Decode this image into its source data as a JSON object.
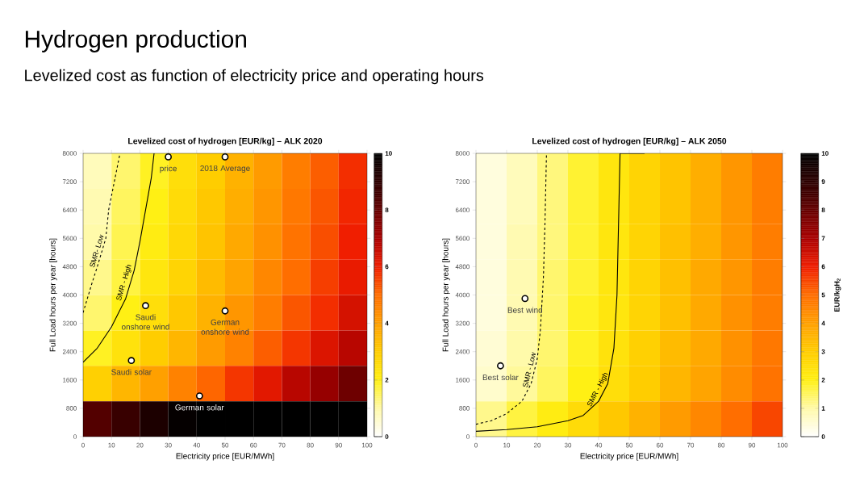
{
  "chart_data": [
    {
      "type": "other",
      "title": "Hydrogen production",
      "subtitle": "Levelized cost as function of electricity price and operating hours"
    },
    {
      "type": "heatmap",
      "title": "Levelized cost of hydrogen [EUR/kg] – ALK 2020",
      "xlabel": "Electricity price [EUR/MWh]",
      "ylabel": "Full Load hours per year [hours]",
      "x": [
        5,
        15,
        25,
        35,
        45,
        55,
        65,
        75,
        85,
        95
      ],
      "y": [
        7500,
        6500,
        5500,
        4500,
        3500,
        2500,
        1500,
        500
      ],
      "cells": [
        [
          0.8,
          1.4,
          1.9,
          2.5,
          3.0,
          3.6,
          4.1,
          4.7,
          5.2,
          5.8
        ],
        [
          0.9,
          1.5,
          2.0,
          2.6,
          3.1,
          3.7,
          4.2,
          4.8,
          5.3,
          5.9
        ],
        [
          1.0,
          1.6,
          2.1,
          2.7,
          3.2,
          3.8,
          4.3,
          4.9,
          5.4,
          6.0
        ],
        [
          1.2,
          1.7,
          2.3,
          2.8,
          3.4,
          3.9,
          4.5,
          5.0,
          5.6,
          6.1
        ],
        [
          1.4,
          2.0,
          2.5,
          3.1,
          3.6,
          4.2,
          4.7,
          5.3,
          5.8,
          6.4
        ],
        [
          1.9,
          2.4,
          3.0,
          3.5,
          4.1,
          4.6,
          5.2,
          5.7,
          6.3,
          6.8
        ],
        [
          2.9,
          3.5,
          4.0,
          4.6,
          5.1,
          5.7,
          6.2,
          6.8,
          7.3,
          7.9
        ],
        [
          8.3,
          8.8,
          9.4,
          9.9,
          10,
          10,
          10,
          10,
          10,
          10
        ]
      ],
      "clim": [
        0,
        10
      ],
      "cticks": [
        0,
        2,
        4,
        6,
        8,
        10
      ],
      "xlim": [
        0,
        100
      ],
      "ylim": [
        0,
        8000
      ],
      "xticks": [
        0,
        10,
        20,
        30,
        40,
        50,
        60,
        70,
        80,
        90,
        100
      ],
      "yticks": [
        0,
        800,
        1600,
        2400,
        3200,
        4000,
        4800,
        5600,
        6400,
        7200,
        8000
      ],
      "series": [
        {
          "type": "line",
          "name": "SMR- Low",
          "color": "#000000",
          "line_style": "dashed",
          "x": [
            0,
            3,
            5,
            8,
            9,
            11,
            13
          ],
          "values": [
            3500,
            4300,
            4800,
            5600,
            6400,
            7200,
            8000
          ]
        },
        {
          "type": "line",
          "name": "SMR - High",
          "color": "#000000",
          "line_style": "solid",
          "x": [
            0,
            5,
            10,
            15,
            18,
            20,
            22,
            24,
            25
          ],
          "values": [
            2100,
            2500,
            3100,
            3900,
            4700,
            5500,
            6400,
            7300,
            8000
          ]
        },
        {
          "type": "scatter",
          "color": "#000000",
          "marker": "circle",
          "x": [
            30,
            50,
            22,
            50,
            17,
            41
          ],
          "values": [
            7900,
            7900,
            3700,
            3550,
            2150,
            1150
          ]
        }
      ],
      "annotations": [
        {
          "text": "price",
          "x": 30,
          "y": 7900
        },
        {
          "text": "2018 Average",
          "x": 50,
          "y": 7900
        },
        {
          "text": "Saudi onshore wind",
          "x": 22,
          "y": 3700
        },
        {
          "text": "German onshore wind",
          "x": 50,
          "y": 3550
        },
        {
          "text": "Saudi solar",
          "x": 17,
          "y": 2150
        },
        {
          "text": "German solar",
          "x": 41,
          "y": 1150
        }
      ]
    },
    {
      "type": "heatmap",
      "title": "Levelized cost of hydrogen [EUR/kg] – ALK 2050",
      "xlabel": "Electricity price [EUR/MWh]",
      "ylabel": "Full Load hours per year [hours]",
      "x": [
        5,
        15,
        25,
        35,
        45,
        55,
        65,
        75,
        85,
        95
      ],
      "y": [
        7500,
        6500,
        5500,
        4500,
        3500,
        2500,
        1500,
        500
      ],
      "cells": [
        [
          0.4,
          0.8,
          1.3,
          1.8,
          2.3,
          2.8,
          3.2,
          3.7,
          4.2,
          4.7
        ],
        [
          0.4,
          0.8,
          1.3,
          1.8,
          2.3,
          2.8,
          3.2,
          3.7,
          4.2,
          4.7
        ],
        [
          0.4,
          0.9,
          1.3,
          1.8,
          2.3,
          2.8,
          3.3,
          3.7,
          4.2,
          4.7
        ],
        [
          0.4,
          0.9,
          1.4,
          1.8,
          2.3,
          2.8,
          3.3,
          3.8,
          4.2,
          4.7
        ],
        [
          0.4,
          0.9,
          1.4,
          1.9,
          2.3,
          2.8,
          3.3,
          3.8,
          4.3,
          4.7
        ],
        [
          0.5,
          1.0,
          1.4,
          1.9,
          2.4,
          2.9,
          3.4,
          3.8,
          4.3,
          4.8
        ],
        [
          0.6,
          1.1,
          1.5,
          2.0,
          2.5,
          3.0,
          3.5,
          3.9,
          4.4,
          4.9
        ],
        [
          1.2,
          1.7,
          2.1,
          2.6,
          3.1,
          3.6,
          4.1,
          4.5,
          5.0,
          5.5
        ]
      ],
      "clim": [
        0,
        10
      ],
      "cticks": [
        0,
        1,
        2,
        3,
        4,
        5,
        6,
        7,
        8,
        9,
        10
      ],
      "clabel": "EUR/kgH$_{2}$",
      "xlim": [
        0,
        100
      ],
      "ylim": [
        0,
        8000
      ],
      "xticks": [
        0,
        10,
        20,
        30,
        40,
        50,
        60,
        70,
        80,
        90,
        100
      ],
      "yticks": [
        0,
        800,
        1600,
        2400,
        3200,
        4000,
        4800,
        5600,
        6400,
        7200,
        8000
      ],
      "series": [
        {
          "type": "line",
          "name": "SMR - Low",
          "color": "#000000",
          "line_style": "dashed",
          "x": [
            0,
            5,
            10,
            15,
            18,
            20,
            21,
            22,
            22.5,
            23
          ],
          "values": [
            350,
            450,
            650,
            1000,
            1500,
            2200,
            3000,
            4500,
            6000,
            8000
          ]
        },
        {
          "type": "line",
          "name": "SMR - High",
          "color": "#000000",
          "line_style": "solid",
          "x": [
            0,
            10,
            20,
            30,
            35,
            40,
            43,
            45,
            46,
            46.5,
            47,
            55
          ],
          "values": [
            150,
            200,
            280,
            450,
            600,
            1000,
            1500,
            2500,
            4000,
            6000,
            8000,
            8000
          ]
        },
        {
          "type": "scatter",
          "color": "#000000",
          "marker": "circle",
          "x": [
            16,
            8
          ],
          "values": [
            3900,
            2000
          ]
        }
      ],
      "annotations": [
        {
          "text": "Best wind",
          "x": 16,
          "y": 3900
        },
        {
          "text": "Best solar",
          "x": 8,
          "y": 2000
        }
      ]
    }
  ]
}
